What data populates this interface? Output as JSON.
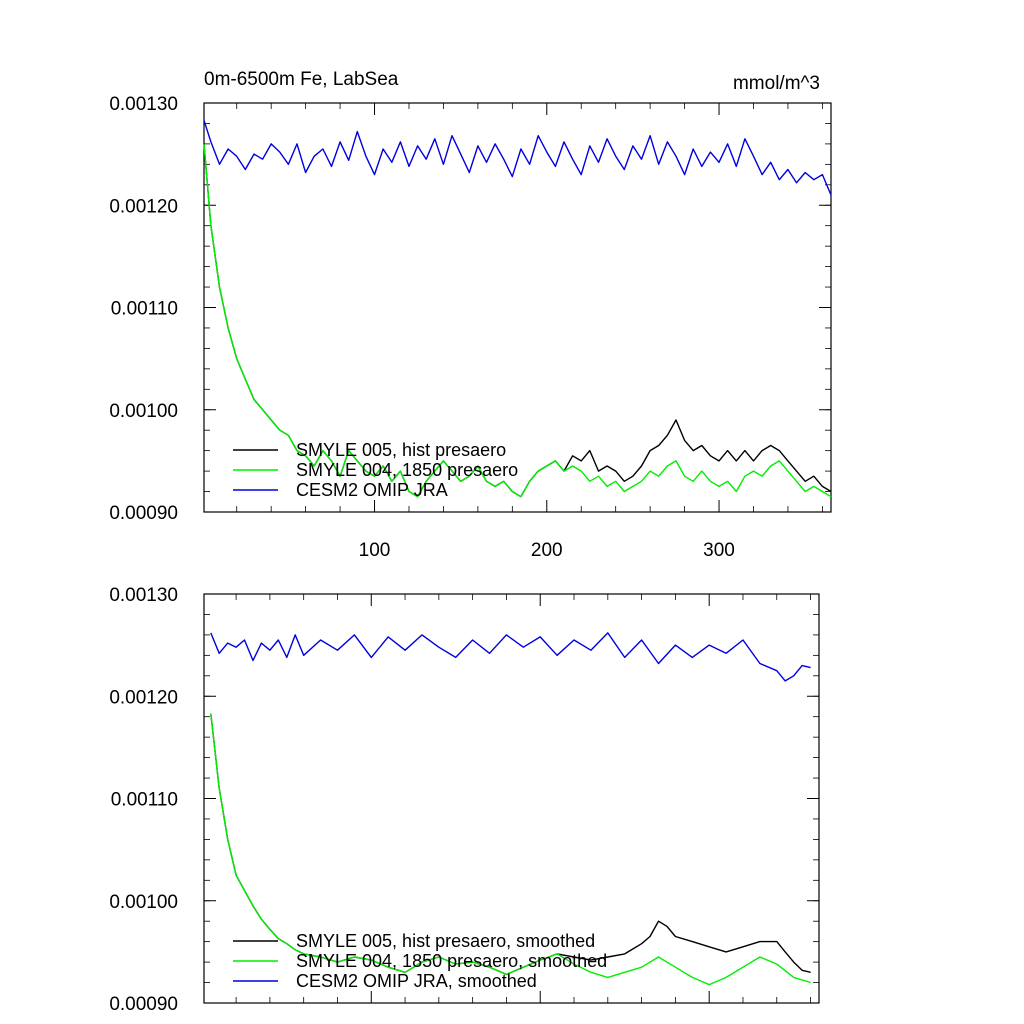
{
  "chart_data": [
    {
      "type": "line",
      "title": "0m-6500m Fe, LabSea",
      "units": "mmol/m^3",
      "xlim": [
        1,
        365
      ],
      "ylim": [
        0.0009,
        0.0013
      ],
      "xticks": [
        100,
        200,
        300
      ],
      "xtick_labels": [
        "100",
        "200",
        "300"
      ],
      "yticks": [
        0.0009,
        0.001,
        0.0011,
        0.0012,
        0.0013
      ],
      "ytick_labels": [
        "0.00090",
        "0.00100",
        "0.00110",
        "0.00120",
        "0.00130"
      ],
      "legend_position": "bottom-left",
      "series": [
        {
          "name": "SMYLE 005, hist presaero",
          "color": "#000000",
          "x": [
            1,
            5,
            10,
            15,
            20,
            25,
            30,
            35,
            40,
            45,
            50,
            55,
            60,
            65,
            70,
            75,
            80,
            85,
            90,
            95,
            100,
            105,
            110,
            115,
            120,
            125,
            130,
            135,
            140,
            145,
            150,
            155,
            160,
            165,
            170,
            175,
            180,
            185,
            190,
            195,
            200,
            205,
            210,
            215,
            220,
            225,
            230,
            235,
            240,
            245,
            250,
            255,
            260,
            265,
            270,
            275,
            280,
            285,
            290,
            295,
            300,
            305,
            310,
            315,
            320,
            325,
            330,
            335,
            340,
            345,
            350,
            355,
            360,
            365
          ],
          "values": [
            0.00126,
            0.00118,
            0.00112,
            0.00108,
            0.00105,
            0.00103,
            0.00101,
            0.001,
            0.00099,
            0.00098,
            0.000975,
            0.00096,
            0.000955,
            0.000945,
            0.00096,
            0.00095,
            0.000935,
            0.00096,
            0.00095,
            0.00094,
            0.000935,
            0.000945,
            0.00093,
            0.00094,
            0.00092,
            0.000915,
            0.00093,
            0.00094,
            0.00095,
            0.00094,
            0.00093,
            0.000935,
            0.000945,
            0.00093,
            0.000925,
            0.00093,
            0.00092,
            0.000915,
            0.00093,
            0.00094,
            0.000945,
            0.00095,
            0.00094,
            0.000955,
            0.00095,
            0.00096,
            0.00094,
            0.000945,
            0.00094,
            0.00093,
            0.000935,
            0.000945,
            0.00096,
            0.000965,
            0.000975,
            0.00099,
            0.00097,
            0.00096,
            0.000965,
            0.000955,
            0.00095,
            0.00096,
            0.00095,
            0.00096,
            0.00095,
            0.00096,
            0.000965,
            0.00096,
            0.00095,
            0.00094,
            0.00093,
            0.000935,
            0.000925,
            0.00092
          ]
        },
        {
          "name": "SMYLE 004, 1850 presaero",
          "color": "#00ee00",
          "x": [
            1,
            5,
            10,
            15,
            20,
            25,
            30,
            35,
            40,
            45,
            50,
            55,
            60,
            65,
            70,
            75,
            80,
            85,
            90,
            95,
            100,
            105,
            110,
            115,
            120,
            125,
            130,
            135,
            140,
            145,
            150,
            155,
            160,
            165,
            170,
            175,
            180,
            185,
            190,
            195,
            200,
            205,
            210,
            215,
            220,
            225,
            230,
            235,
            240,
            245,
            250,
            255,
            260,
            265,
            270,
            275,
            280,
            285,
            290,
            295,
            300,
            305,
            310,
            315,
            320,
            325,
            330,
            335,
            340,
            345,
            350,
            355,
            360,
            365
          ],
          "values": [
            0.00126,
            0.00118,
            0.00112,
            0.00108,
            0.00105,
            0.00103,
            0.00101,
            0.001,
            0.00099,
            0.00098,
            0.000975,
            0.00096,
            0.000955,
            0.000945,
            0.00096,
            0.00095,
            0.000935,
            0.00096,
            0.00095,
            0.00094,
            0.000935,
            0.000945,
            0.00093,
            0.00094,
            0.00092,
            0.000915,
            0.00093,
            0.00094,
            0.00095,
            0.00094,
            0.00093,
            0.000935,
            0.000945,
            0.00093,
            0.000925,
            0.00093,
            0.00092,
            0.000915,
            0.00093,
            0.00094,
            0.000945,
            0.00095,
            0.00094,
            0.000945,
            0.00094,
            0.00093,
            0.000935,
            0.000925,
            0.00093,
            0.00092,
            0.000925,
            0.00093,
            0.00094,
            0.000935,
            0.000945,
            0.00095,
            0.000935,
            0.00093,
            0.00094,
            0.00093,
            0.000925,
            0.00093,
            0.00092,
            0.000935,
            0.00094,
            0.000935,
            0.000945,
            0.00095,
            0.00094,
            0.00093,
            0.00092,
            0.000925,
            0.00092,
            0.000915
          ]
        },
        {
          "name": "CESM2 OMIP JRA",
          "color": "#0000e0",
          "x": [
            1,
            5,
            10,
            15,
            20,
            25,
            30,
            35,
            40,
            45,
            50,
            55,
            60,
            65,
            70,
            75,
            80,
            85,
            90,
            95,
            100,
            105,
            110,
            115,
            120,
            125,
            130,
            135,
            140,
            145,
            150,
            155,
            160,
            165,
            170,
            175,
            180,
            185,
            190,
            195,
            200,
            205,
            210,
            215,
            220,
            225,
            230,
            235,
            240,
            245,
            250,
            255,
            260,
            265,
            270,
            275,
            280,
            285,
            290,
            295,
            300,
            305,
            310,
            315,
            320,
            325,
            330,
            335,
            340,
            345,
            350,
            355,
            360,
            365
          ],
          "values": [
            0.001283,
            0.001262,
            0.00124,
            0.001255,
            0.001248,
            0.001235,
            0.00125,
            0.001245,
            0.00126,
            0.001252,
            0.00124,
            0.00126,
            0.001232,
            0.001248,
            0.001255,
            0.001238,
            0.001262,
            0.001244,
            0.001272,
            0.001248,
            0.00123,
            0.001255,
            0.001242,
            0.001262,
            0.001238,
            0.001258,
            0.001245,
            0.001265,
            0.00124,
            0.001268,
            0.00125,
            0.001232,
            0.001258,
            0.001242,
            0.00126,
            0.001245,
            0.001228,
            0.001255,
            0.00124,
            0.001268,
            0.001252,
            0.001238,
            0.001262,
            0.001245,
            0.00123,
            0.001258,
            0.001242,
            0.001265,
            0.001248,
            0.001235,
            0.001258,
            0.001245,
            0.001268,
            0.00124,
            0.001262,
            0.001248,
            0.00123,
            0.001255,
            0.001238,
            0.001252,
            0.001242,
            0.00126,
            0.001238,
            0.001265,
            0.001248,
            0.00123,
            0.001242,
            0.001225,
            0.001235,
            0.001222,
            0.001232,
            0.001225,
            0.00123,
            0.00121
          ]
        }
      ]
    },
    {
      "type": "line",
      "xlim": [
        1,
        365
      ],
      "ylim": [
        0.0009,
        0.0013
      ],
      "xticks": [
        100,
        200,
        300
      ],
      "yticks": [
        0.0009,
        0.001,
        0.0011,
        0.0012,
        0.0013
      ],
      "ytick_labels": [
        "0.00090",
        "0.00100",
        "0.00110",
        "0.00120",
        "0.00130"
      ],
      "legend_position": "bottom-left",
      "series": [
        {
          "name": "SMYLE 005, hist presaero, smoothed",
          "color": "#000000",
          "x": [
            5,
            10,
            15,
            20,
            25,
            30,
            35,
            40,
            45,
            50,
            55,
            60,
            70,
            80,
            90,
            100,
            110,
            120,
            130,
            140,
            150,
            160,
            170,
            180,
            190,
            200,
            210,
            220,
            230,
            240,
            250,
            260,
            265,
            270,
            275,
            280,
            290,
            300,
            310,
            320,
            330,
            340,
            345,
            350,
            355,
            360
          ],
          "values": [
            0.001183,
            0.00111,
            0.00106,
            0.001025,
            0.00101,
            0.000995,
            0.000982,
            0.000972,
            0.000963,
            0.000958,
            0.000952,
            0.000948,
            0.000945,
            0.00094,
            0.000945,
            0.000942,
            0.000935,
            0.00093,
            0.00094,
            0.000945,
            0.000938,
            0.00094,
            0.000935,
            0.000928,
            0.000935,
            0.000942,
            0.000948,
            0.000945,
            0.000942,
            0.000945,
            0.000948,
            0.000958,
            0.000965,
            0.00098,
            0.000975,
            0.000965,
            0.00096,
            0.000955,
            0.00095,
            0.000955,
            0.00096,
            0.00096,
            0.00095,
            0.00094,
            0.000932,
            0.00093
          ]
        },
        {
          "name": "SMYLE 004, 1850 presaero, smoothed",
          "color": "#00ee00",
          "x": [
            5,
            10,
            15,
            20,
            25,
            30,
            35,
            40,
            45,
            50,
            55,
            60,
            70,
            80,
            90,
            100,
            110,
            120,
            130,
            140,
            150,
            160,
            170,
            180,
            190,
            200,
            210,
            220,
            230,
            240,
            250,
            260,
            270,
            280,
            290,
            300,
            310,
            320,
            330,
            340,
            350,
            360
          ],
          "values": [
            0.001183,
            0.00111,
            0.00106,
            0.001025,
            0.00101,
            0.000995,
            0.000982,
            0.000972,
            0.000963,
            0.000958,
            0.000952,
            0.000948,
            0.000945,
            0.00094,
            0.000945,
            0.000942,
            0.000935,
            0.00093,
            0.00094,
            0.000945,
            0.000938,
            0.00094,
            0.000935,
            0.000928,
            0.000935,
            0.000942,
            0.000948,
            0.000938,
            0.00093,
            0.000925,
            0.00093,
            0.000935,
            0.000945,
            0.000935,
            0.000925,
            0.000918,
            0.000925,
            0.000935,
            0.000945,
            0.000938,
            0.000925,
            0.00092
          ]
        },
        {
          "name": "CESM2 OMIP JRA, smoothed",
          "color": "#0000e0",
          "x": [
            5,
            10,
            15,
            20,
            25,
            30,
            35,
            40,
            45,
            50,
            55,
            60,
            70,
            80,
            90,
            100,
            110,
            120,
            130,
            140,
            150,
            160,
            170,
            180,
            190,
            200,
            210,
            220,
            230,
            240,
            250,
            260,
            270,
            280,
            290,
            300,
            310,
            320,
            330,
            340,
            345,
            350,
            355,
            360
          ],
          "values": [
            0.001262,
            0.001242,
            0.001252,
            0.001248,
            0.001255,
            0.001235,
            0.001252,
            0.001245,
            0.001255,
            0.001238,
            0.00126,
            0.00124,
            0.001255,
            0.001245,
            0.00126,
            0.001238,
            0.001258,
            0.001245,
            0.00126,
            0.001248,
            0.001238,
            0.001255,
            0.001242,
            0.00126,
            0.001248,
            0.001258,
            0.00124,
            0.001255,
            0.001245,
            0.001262,
            0.001238,
            0.001255,
            0.001232,
            0.00125,
            0.001238,
            0.00125,
            0.001242,
            0.001255,
            0.001232,
            0.001225,
            0.001215,
            0.00122,
            0.00123,
            0.001228
          ]
        }
      ]
    }
  ]
}
